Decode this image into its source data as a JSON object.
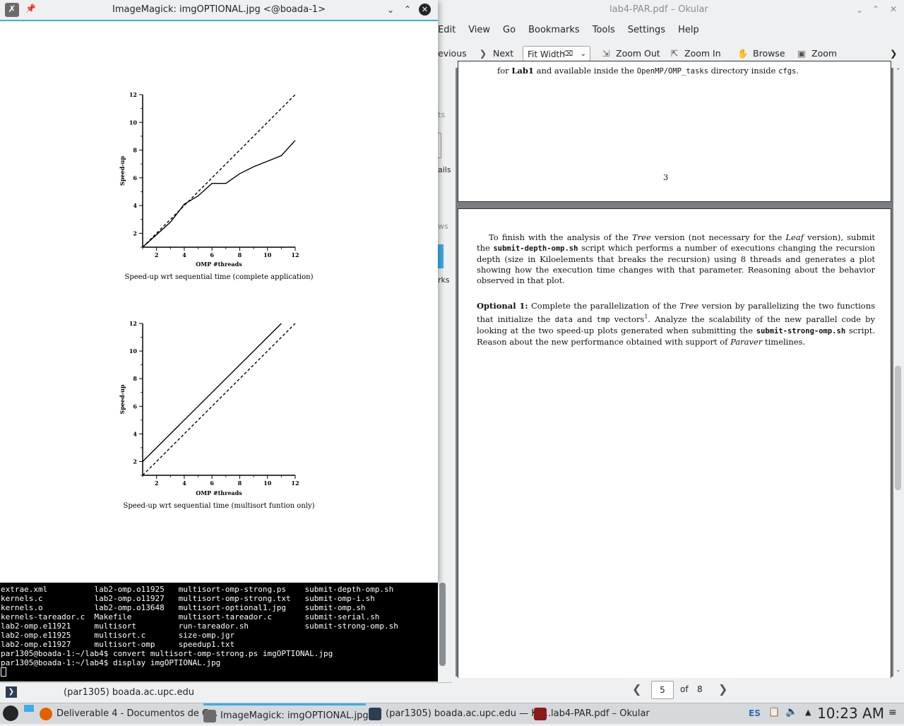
{
  "okular": {
    "title": "lab4-PAR.pdf – Okular",
    "menu": [
      "Edit",
      "View",
      "Go",
      "Bookmarks",
      "Tools",
      "Settings",
      "Help"
    ],
    "toolbar": {
      "previous": "evious",
      "next": "Next",
      "zoom_value": "Fit Width",
      "zoom_out": "Zoom Out",
      "zoom_in": "Zoom In",
      "browse": "Browse",
      "zoom": "Zoom"
    },
    "sidebar_fragments": [
      "ts",
      "ails",
      "ws",
      "rks"
    ],
    "prev_page": {
      "line_start": "for",
      "line_bold": "Lab1",
      "line_mid": "and available inside the",
      "line_code1": "OpenMP/OMP_tasks",
      "line_mid2": "directory inside",
      "line_code2": "cfgs",
      "line_end": ".",
      "page_number": "3"
    },
    "cur_page": {
      "p1_a": "To finish with the analysis of the",
      "p1_tree": "Tree",
      "p1_b": "version (not necessary for the",
      "p1_leaf": "Leaf",
      "p1_c": "version), submit the",
      "p1_code": "submit-depth-omp.sh",
      "p1_d": "script which performs a number of executions changing the recursion depth (size in Kiloelements that breaks the recursion) using 8 threads and generates a plot showing how the execution time changes with that parameter. Reasoning about the behavior observed in that plot.",
      "opt_label": "Optional 1:",
      "p2_a": "Complete the parallelization of the",
      "p2_tree": "Tree",
      "p2_b": "version by parallelizing the two functions that initialize the",
      "p2_code1": "data",
      "p2_and": "and",
      "p2_code2": "tmp",
      "p2_c": "vectors",
      "p2_sup": "1",
      "p2_d": ". Analyze the scalability of the new parallel code by looking at the two speed-up plots generated when submitting the",
      "p2_code3": "submit-strong-omp.sh",
      "p2_e": "script. Reason about the new performance obtained with support of",
      "p2_paraver": "Paraver",
      "p2_f": "timelines."
    },
    "page_nav": {
      "current": "5",
      "of_label": "of",
      "total": "8"
    }
  },
  "imagemagick": {
    "title": "ImageMagick: imgOPTIONAL.jpg <@boada-1>"
  },
  "chart_data": [
    {
      "type": "line",
      "title": "",
      "caption": "Speed-up wrt sequential time (complete application)",
      "xlabel": "OMP #threads",
      "ylabel": "Speed-up",
      "xlim": [
        1,
        12
      ],
      "ylim": [
        1,
        12
      ],
      "xticks": [
        2,
        4,
        6,
        8,
        10,
        12
      ],
      "yticks": [
        2,
        4,
        6,
        8,
        10,
        12
      ],
      "series": [
        {
          "style": "solid",
          "x": [
            1,
            2,
            3,
            4,
            5,
            6,
            7,
            8,
            9,
            10,
            11,
            12
          ],
          "y": [
            1,
            1.9,
            2.8,
            4.1,
            4.7,
            5.6,
            5.6,
            6.3,
            6.8,
            7.2,
            7.6,
            8.7
          ]
        },
        {
          "style": "dashed",
          "x": [
            1,
            12
          ],
          "y": [
            1,
            12
          ]
        }
      ]
    },
    {
      "type": "line",
      "title": "",
      "caption": "Speed-up wrt sequential time (multisort funtion only)",
      "xlabel": "OMP #threads",
      "ylabel": "Speed-up",
      "xlim": [
        1,
        12
      ],
      "ylim": [
        1,
        12
      ],
      "xticks": [
        2,
        4,
        6,
        8,
        10,
        12
      ],
      "yticks": [
        2,
        4,
        6,
        8,
        10,
        12
      ],
      "series": [
        {
          "style": "solid",
          "x": [
            1,
            11
          ],
          "y": [
            2,
            12
          ]
        },
        {
          "style": "dashed",
          "x": [
            1,
            12
          ],
          "y": [
            1,
            12
          ]
        }
      ]
    }
  ],
  "terminal": {
    "rows": [
      "extrae.xml          lab2-omp.o11925   multisort-omp-strong.ps    submit-depth-omp.sh",
      "kernels.c           lab2-omp.o11927   multisort-omp-strong.txt   submit-omp-i.sh",
      "kernels.o           lab2-omp.o13648   multisort-optional1.jpg    submit-omp.sh",
      "kernels-tareador.c  Makefile          multisort-tareador.c       submit-serial.sh",
      "lab2-omp.e11921     multisort         run-tareador.sh            submit-strong-omp.sh",
      "lab2-omp.e11925     multisort.c       size-omp.jgr",
      "lab2-omp.e11927     multisort-omp     speedup1.txt",
      "par1305@boada-1:~/lab4$ convert multisort-omp-strong.ps imgOPTIONAL.jpg",
      "par1305@boada-1:~/lab4$ display imgOPTIONAL.jpg"
    ],
    "tab_label": "(par1305) boada.ac.upc.edu"
  },
  "taskbar": {
    "tasks": [
      {
        "label": "Deliverable 4 - Documentos de G...",
        "color": "#e66000"
      },
      {
        "label": "ImageMagick: imgOPTIONAL.jpg",
        "color": "#6b6b6b"
      },
      {
        "label": "(par1305) boada.ac.upc.edu — Ko...",
        "color": "#2c3e50"
      },
      {
        "label": "lab4-PAR.pdf – Okular",
        "color": "#8b1a1a"
      }
    ],
    "lang": "ES",
    "clock": "10:23 AM"
  }
}
